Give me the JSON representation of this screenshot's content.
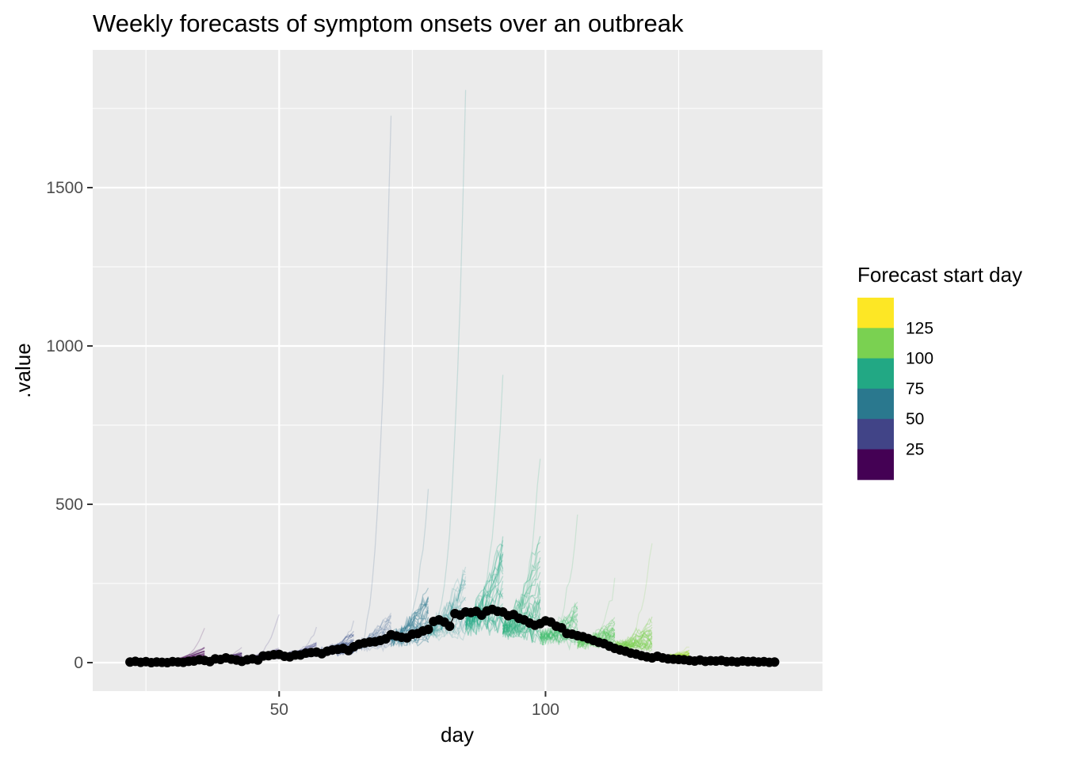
{
  "chart_data": {
    "type": "line",
    "title": "Weekly forecasts of symptom onsets over an outbreak",
    "xlabel": "day",
    "ylabel": ".value",
    "xlim": [
      15,
      152
    ],
    "ylim": [
      -90,
      1935
    ],
    "x_ticks": [
      50,
      100
    ],
    "y_ticks": [
      0,
      500,
      1000,
      1500
    ],
    "x_minor_ticks": [
      25,
      75,
      125
    ],
    "y_minor_ticks": [
      250,
      750,
      1250,
      1750
    ],
    "grid": true,
    "legend": {
      "title": "Forecast start day",
      "position": "right",
      "labels": [
        "125",
        "100",
        "75",
        "50",
        "25"
      ],
      "colors": [
        "#fde725",
        "#7ad151",
        "#22a884",
        "#2a788e",
        "#414487",
        "#440154"
      ],
      "bins": [
        [
          125,
          150
        ],
        [
          100,
          125
        ],
        [
          75,
          100
        ],
        [
          50,
          75
        ],
        [
          25,
          50
        ],
        [
          0,
          25
        ]
      ]
    },
    "forecast_windows": [
      {
        "start": 29,
        "end": 36,
        "color": "#440154",
        "base": 5,
        "spread": 45,
        "max": 110,
        "alpha": 0.3
      },
      {
        "start": 36,
        "end": 43,
        "color": "#46256b",
        "base": 10,
        "spread": 25,
        "max": 50,
        "alpha": 0.3
      },
      {
        "start": 43,
        "end": 50,
        "color": "#45337f",
        "base": 15,
        "spread": 35,
        "max": 155,
        "alpha": 0.25
      },
      {
        "start": 50,
        "end": 57,
        "color": "#414487",
        "base": 25,
        "spread": 40,
        "max": 110,
        "alpha": 0.28
      },
      {
        "start": 57,
        "end": 64,
        "color": "#3b528b",
        "base": 40,
        "spread": 60,
        "max": 130,
        "alpha": 0.3
      },
      {
        "start": 64,
        "end": 71,
        "color": "#355f8d",
        "base": 60,
        "spread": 120,
        "max": 1740,
        "alpha": 0.16
      },
      {
        "start": 71,
        "end": 78,
        "color": "#2a788e",
        "base": 90,
        "spread": 150,
        "max": 540,
        "alpha": 0.3
      },
      {
        "start": 78,
        "end": 85,
        "color": "#21918c",
        "base": 120,
        "spread": 200,
        "max": 1840,
        "alpha": 0.16
      },
      {
        "start": 85,
        "end": 92,
        "color": "#22a884",
        "base": 150,
        "spread": 260,
        "max": 930,
        "alpha": 0.28
      },
      {
        "start": 92,
        "end": 99,
        "color": "#2cb17e",
        "base": 120,
        "spread": 300,
        "max": 660,
        "alpha": 0.3
      },
      {
        "start": 99,
        "end": 106,
        "color": "#44bf70",
        "base": 95,
        "spread": 90,
        "max": 470,
        "alpha": 0.25
      },
      {
        "start": 106,
        "end": 113,
        "color": "#5ec962",
        "base": 75,
        "spread": 80,
        "max": 260,
        "alpha": 0.28
      },
      {
        "start": 113,
        "end": 120,
        "color": "#7ad151",
        "base": 60,
        "spread": 90,
        "max": 400,
        "alpha": 0.3
      },
      {
        "start": 120,
        "end": 127,
        "color": "#a0da39",
        "base": 20,
        "spread": 20,
        "max": 55,
        "alpha": 0.3
      }
    ],
    "observed": [
      [
        22,
        2
      ],
      [
        23,
        4
      ],
      [
        24,
        1
      ],
      [
        25,
        3
      ],
      [
        26,
        0
      ],
      [
        27,
        2
      ],
      [
        28,
        1
      ],
      [
        29,
        0
      ],
      [
        30,
        3
      ],
      [
        31,
        2
      ],
      [
        32,
        1
      ],
      [
        33,
        4
      ],
      [
        34,
        5
      ],
      [
        35,
        9
      ],
      [
        36,
        7
      ],
      [
        37,
        3
      ],
      [
        38,
        12
      ],
      [
        39,
        10
      ],
      [
        40,
        15
      ],
      [
        41,
        11
      ],
      [
        42,
        8
      ],
      [
        43,
        4
      ],
      [
        44,
        9
      ],
      [
        45,
        12
      ],
      [
        46,
        8
      ],
      [
        47,
        21
      ],
      [
        48,
        22
      ],
      [
        49,
        25
      ],
      [
        50,
        26
      ],
      [
        51,
        20
      ],
      [
        52,
        18
      ],
      [
        53,
        24
      ],
      [
        54,
        24
      ],
      [
        55,
        30
      ],
      [
        56,
        32
      ],
      [
        57,
        33
      ],
      [
        58,
        28
      ],
      [
        59,
        36
      ],
      [
        60,
        40
      ],
      [
        61,
        42
      ],
      [
        62,
        45
      ],
      [
        63,
        38
      ],
      [
        64,
        50
      ],
      [
        65,
        58
      ],
      [
        66,
        62
      ],
      [
        67,
        65
      ],
      [
        68,
        66
      ],
      [
        69,
        70
      ],
      [
        70,
        75
      ],
      [
        71,
        88
      ],
      [
        72,
        84
      ],
      [
        73,
        80
      ],
      [
        74,
        78
      ],
      [
        75,
        90
      ],
      [
        76,
        92
      ],
      [
        77,
        100
      ],
      [
        78,
        105
      ],
      [
        79,
        130
      ],
      [
        80,
        135
      ],
      [
        81,
        128
      ],
      [
        82,
        115
      ],
      [
        83,
        155
      ],
      [
        84,
        150
      ],
      [
        85,
        160
      ],
      [
        86,
        158
      ],
      [
        87,
        162
      ],
      [
        88,
        150
      ],
      [
        89,
        163
      ],
      [
        90,
        168
      ],
      [
        91,
        162
      ],
      [
        92,
        160
      ],
      [
        93,
        148
      ],
      [
        94,
        152
      ],
      [
        95,
        140
      ],
      [
        96,
        135
      ],
      [
        97,
        125
      ],
      [
        98,
        118
      ],
      [
        99,
        123
      ],
      [
        100,
        132
      ],
      [
        101,
        128
      ],
      [
        102,
        115
      ],
      [
        103,
        110
      ],
      [
        104,
        92
      ],
      [
        105,
        90
      ],
      [
        106,
        85
      ],
      [
        107,
        82
      ],
      [
        108,
        76
      ],
      [
        109,
        70
      ],
      [
        110,
        64
      ],
      [
        111,
        60
      ],
      [
        112,
        52
      ],
      [
        113,
        45
      ],
      [
        114,
        40
      ],
      [
        115,
        36
      ],
      [
        116,
        30
      ],
      [
        117,
        27
      ],
      [
        118,
        22
      ],
      [
        119,
        18
      ],
      [
        120,
        15
      ],
      [
        121,
        20
      ],
      [
        122,
        15
      ],
      [
        123,
        12
      ],
      [
        124,
        11
      ],
      [
        125,
        10
      ],
      [
        126,
        9
      ],
      [
        127,
        7
      ],
      [
        128,
        5
      ],
      [
        129,
        8
      ],
      [
        130,
        4
      ],
      [
        131,
        6
      ],
      [
        132,
        5
      ],
      [
        133,
        7
      ],
      [
        134,
        3
      ],
      [
        135,
        4
      ],
      [
        136,
        2
      ],
      [
        137,
        5
      ],
      [
        138,
        3
      ],
      [
        139,
        4
      ],
      [
        140,
        2
      ],
      [
        141,
        3
      ],
      [
        142,
        1
      ],
      [
        143,
        2
      ]
    ]
  }
}
